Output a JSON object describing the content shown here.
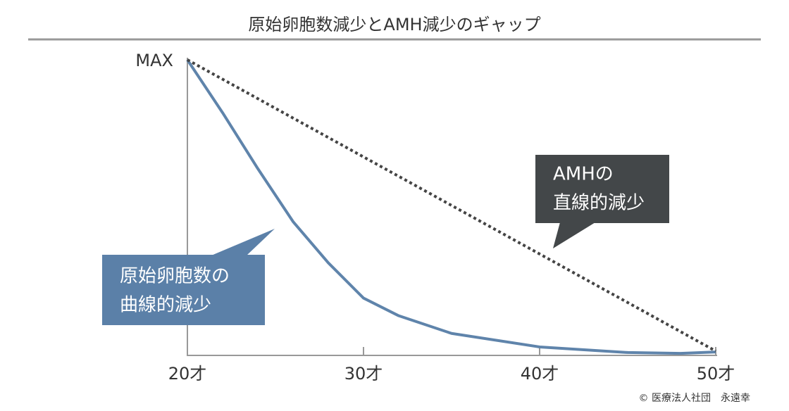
{
  "chart_data": {
    "type": "line",
    "title": "原始卵胞数減少とAMH減少のギャップ",
    "xlim": [
      20,
      50
    ],
    "xticks": [
      {
        "value": 20,
        "label": "20才"
      },
      {
        "value": 30,
        "label": "30才"
      },
      {
        "value": 40,
        "label": "40才"
      },
      {
        "value": 50,
        "label": "50才"
      }
    ],
    "ylim": [
      0,
      100
    ],
    "yticks": [
      {
        "value": 100,
        "label": "MAX"
      }
    ],
    "series": [
      {
        "name": "原始卵胞数",
        "color": "#5f84ab",
        "style": "solid",
        "x": [
          20,
          22,
          24,
          26,
          28,
          30,
          32,
          35,
          40,
          45,
          48,
          50
        ],
        "values": [
          100,
          82,
          63,
          45,
          31,
          19,
          13,
          7,
          2.4,
          0.5,
          0.2,
          0.7
        ]
      },
      {
        "name": "AMH",
        "color": "#444444",
        "style": "dotted",
        "x": [
          20,
          50
        ],
        "values": [
          100,
          1
        ]
      }
    ],
    "annotations": [
      {
        "lines": [
          "原始卵胞数の",
          "曲線的減少"
        ],
        "color": "#5b80a8"
      },
      {
        "lines": [
          "AMHの",
          "直線的減少"
        ],
        "color": "#434749"
      }
    ],
    "credit": "© 医療法人社団　永遠幸"
  }
}
